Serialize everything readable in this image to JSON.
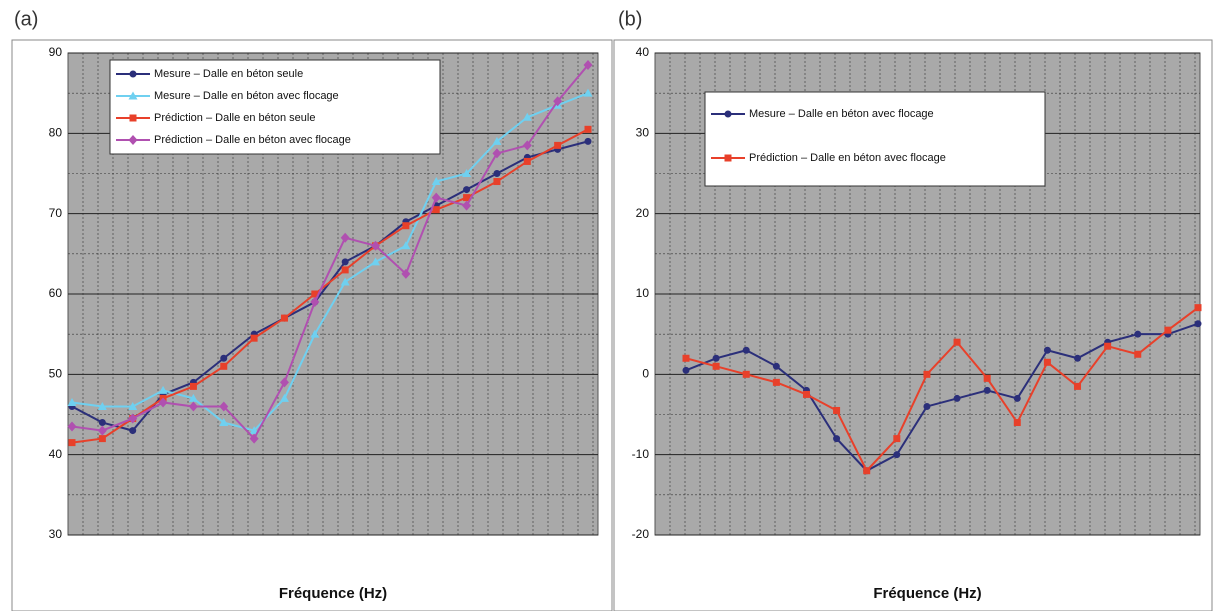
{
  "chart_data": [
    {
      "type": "line",
      "panel": "(a)",
      "xlabel": "Fréquence (Hz)",
      "ylim": [
        30,
        90
      ],
      "yticks": [
        30,
        40,
        50,
        60,
        70,
        80,
        90
      ],
      "grid": true,
      "legend": "upper left",
      "series": [
        {
          "name": "Mesure – Dalle en béton seule",
          "color": "#2b2f7a",
          "marker": "circle",
          "values": [
            46,
            44,
            43,
            47.5,
            49,
            52,
            55,
            57,
            59,
            64,
            66,
            69,
            71,
            73,
            75,
            77,
            78,
            79
          ]
        },
        {
          "name": "Mesure – Dalle en béton avec flocage",
          "color": "#6fd0f0",
          "marker": "triangle",
          "values": [
            46.5,
            46,
            46,
            48,
            47,
            44,
            43,
            47,
            55,
            61.5,
            64,
            66,
            74,
            75,
            79,
            82,
            83.5,
            85
          ]
        },
        {
          "name": "Prédiction – Dalle en béton seule",
          "color": "#e8402a",
          "marker": "square",
          "values": [
            41.5,
            42,
            44.5,
            47,
            48.5,
            51,
            54.5,
            57,
            60,
            63,
            66,
            68.5,
            70.5,
            72,
            74,
            76.5,
            78.5,
            80.5
          ]
        },
        {
          "name": "Prédiction – Dalle en béton avec flocage",
          "color": "#b050b0",
          "marker": "diamond",
          "values": [
            43.5,
            43,
            44.5,
            46.5,
            46,
            46,
            42,
            49,
            59,
            67,
            66,
            62.5,
            72,
            71,
            77.5,
            78.5,
            84,
            88.5
          ]
        }
      ]
    },
    {
      "type": "line",
      "panel": "(b)",
      "xlabel": "Fréquence (Hz)",
      "ylim": [
        -20,
        40
      ],
      "yticks": [
        -20,
        -10,
        0,
        10,
        20,
        30,
        40
      ],
      "grid": true,
      "legend": "upper left",
      "series": [
        {
          "name": "Mesure – Dalle en béton avec flocage",
          "color": "#2b2f7a",
          "marker": "circle",
          "values": [
            0.5,
            2,
            3,
            1,
            -2,
            -8,
            -12,
            -10,
            -4,
            -3,
            -2,
            -3,
            3,
            2,
            4,
            5,
            5,
            6.3
          ]
        },
        {
          "name": "Prédiction – Dalle en béton avec flocage",
          "color": "#e8402a",
          "marker": "square",
          "values": [
            2,
            1,
            0,
            -1,
            -2.5,
            -4.5,
            -12,
            -8,
            0,
            4,
            -0.5,
            -6,
            1.5,
            -1.5,
            3.5,
            2.5,
            5.5,
            8.3
          ]
        }
      ]
    }
  ]
}
